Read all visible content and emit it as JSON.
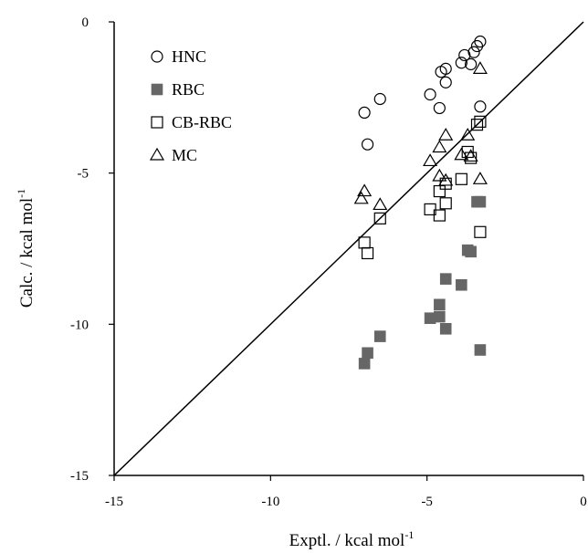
{
  "chart_data": {
    "type": "scatter",
    "xlabel": "Exptl. / kcal mol",
    "xlabel_sup": "-1",
    "ylabel": "Calc. / kcal mol",
    "ylabel_sup": "-1",
    "xlim": [
      -15,
      0
    ],
    "ylim": [
      -15,
      0
    ],
    "xticks": [
      "-15",
      "-10",
      "-5",
      "0"
    ],
    "yticks": [
      "0",
      "-5",
      "-10",
      "-15"
    ],
    "grid": false,
    "legend": "top-left",
    "diagonal_line": {
      "from": [
        -15,
        -15
      ],
      "to": [
        0,
        0
      ]
    },
    "series": [
      {
        "name": "HNC",
        "marker": "open-circle",
        "color": "#000000",
        "points": [
          [
            -3.3,
            -0.65
          ],
          [
            -3.4,
            -0.8
          ],
          [
            -3.5,
            -1.0
          ],
          [
            -3.8,
            -1.1
          ],
          [
            -3.6,
            -1.4
          ],
          [
            -3.9,
            -1.35
          ],
          [
            -4.4,
            -1.55
          ],
          [
            -4.55,
            -1.65
          ],
          [
            -4.4,
            -2.0
          ],
          [
            -4.9,
            -2.4
          ],
          [
            -6.5,
            -2.55
          ],
          [
            -4.6,
            -2.85
          ],
          [
            -3.3,
            -2.8
          ],
          [
            -7.0,
            -3.0
          ],
          [
            -6.9,
            -4.05
          ]
        ]
      },
      {
        "name": "RBC",
        "marker": "filled-square",
        "color": "#666666",
        "points": [
          [
            -3.4,
            -5.95
          ],
          [
            -3.3,
            -5.95
          ],
          [
            -3.7,
            -7.55
          ],
          [
            -3.6,
            -7.6
          ],
          [
            -4.4,
            -8.5
          ],
          [
            -3.9,
            -8.7
          ],
          [
            -4.6,
            -9.35
          ],
          [
            -4.6,
            -9.75
          ],
          [
            -4.9,
            -9.8
          ],
          [
            -4.4,
            -10.15
          ],
          [
            -6.5,
            -10.4
          ],
          [
            -6.9,
            -10.95
          ],
          [
            -7.0,
            -11.3
          ],
          [
            -3.3,
            -10.85
          ]
        ]
      },
      {
        "name": "CB-RBC",
        "marker": "open-square",
        "color": "#000000",
        "points": [
          [
            -3.3,
            -3.3
          ],
          [
            -3.4,
            -3.4
          ],
          [
            -3.7,
            -4.3
          ],
          [
            -3.6,
            -4.5
          ],
          [
            -3.9,
            -5.2
          ],
          [
            -4.4,
            -5.35
          ],
          [
            -4.6,
            -5.6
          ],
          [
            -4.4,
            -6.0
          ],
          [
            -4.9,
            -6.2
          ],
          [
            -4.6,
            -6.4
          ],
          [
            -6.5,
            -6.5
          ],
          [
            -7.0,
            -7.3
          ],
          [
            -6.9,
            -7.65
          ],
          [
            -3.3,
            -6.95
          ]
        ]
      },
      {
        "name": "MC",
        "marker": "open-triangle",
        "color": "#000000",
        "points": [
          [
            -3.3,
            -1.55
          ],
          [
            -3.7,
            -3.75
          ],
          [
            -4.4,
            -3.75
          ],
          [
            -4.6,
            -4.15
          ],
          [
            -3.9,
            -4.4
          ],
          [
            -3.6,
            -4.45
          ],
          [
            -4.9,
            -4.6
          ],
          [
            -4.6,
            -5.1
          ],
          [
            -4.4,
            -5.25
          ],
          [
            -3.3,
            -5.2
          ],
          [
            -7.0,
            -5.6
          ],
          [
            -7.1,
            -5.85
          ],
          [
            -6.5,
            -6.05
          ]
        ]
      }
    ]
  }
}
